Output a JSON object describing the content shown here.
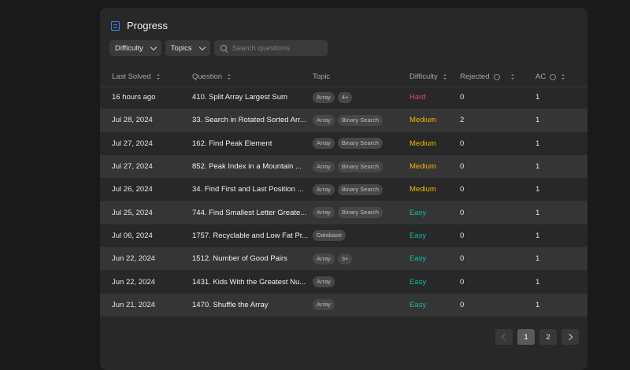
{
  "panel": {
    "title": "Progress",
    "title_icon": "list-icon"
  },
  "filters": {
    "difficulty_label": "Difficulty",
    "topics_label": "Topics",
    "search_placeholder": "Search questions"
  },
  "columns": {
    "last_solved": "Last Solved",
    "question": "Question",
    "topic": "Topic",
    "difficulty": "Difficulty",
    "rejected": "Rejected",
    "ac": "AC"
  },
  "rows": [
    {
      "date": "16 hours ago",
      "question": "410. Split Array Largest Sum",
      "tags": [
        "Array",
        "4+"
      ],
      "difficulty": "Hard",
      "rejected": "0",
      "ac": "1"
    },
    {
      "date": "Jul 28, 2024",
      "question": "33. Search in Rotated Sorted Arr...",
      "tags": [
        "Array",
        "Binary Search"
      ],
      "difficulty": "Medium",
      "rejected": "2",
      "ac": "1"
    },
    {
      "date": "Jul 27, 2024",
      "question": "162. Find Peak Element",
      "tags": [
        "Array",
        "Binary Search"
      ],
      "difficulty": "Medium",
      "rejected": "0",
      "ac": "1"
    },
    {
      "date": "Jul 27, 2024",
      "question": "852. Peak Index in a Mountain ...",
      "tags": [
        "Array",
        "Binary Search"
      ],
      "difficulty": "Medium",
      "rejected": "0",
      "ac": "1"
    },
    {
      "date": "Jul 26, 2024",
      "question": "34. Find First and Last Position ...",
      "tags": [
        "Array",
        "Binary Search"
      ],
      "difficulty": "Medium",
      "rejected": "0",
      "ac": "1"
    },
    {
      "date": "Jul 25, 2024",
      "question": "744. Find Smallest Letter Greate...",
      "tags": [
        "Array",
        "Binary Search"
      ],
      "difficulty": "Easy",
      "rejected": "0",
      "ac": "1"
    },
    {
      "date": "Jul 06, 2024",
      "question": "1757. Recyclable and Low Fat Pr...",
      "tags": [
        "Database"
      ],
      "difficulty": "Easy",
      "rejected": "0",
      "ac": "1"
    },
    {
      "date": "Jun 22, 2024",
      "question": "1512. Number of Good Pairs",
      "tags": [
        "Array",
        "3+"
      ],
      "difficulty": "Easy",
      "rejected": "0",
      "ac": "1"
    },
    {
      "date": "Jun 22, 2024",
      "question": "1431. Kids With the Greatest Nu...",
      "tags": [
        "Array"
      ],
      "difficulty": "Easy",
      "rejected": "0",
      "ac": "1"
    },
    {
      "date": "Jun 21, 2024",
      "question": "1470. Shuffle the Array",
      "tags": [
        "Array"
      ],
      "difficulty": "Easy",
      "rejected": "0",
      "ac": "1"
    }
  ],
  "pagination": {
    "pages": [
      "1",
      "2"
    ],
    "current": "1"
  },
  "colors": {
    "hard": "#f43f5e",
    "medium": "#f5b700",
    "easy": "#14b8a6",
    "accent": "#3b82f6"
  }
}
